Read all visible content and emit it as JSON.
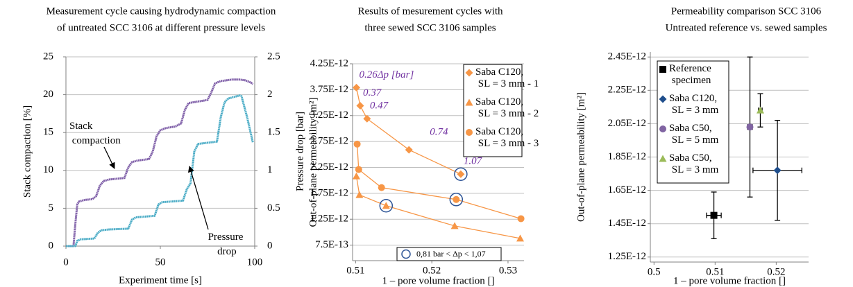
{
  "chart_data": [
    {
      "type": "line",
      "title": [
        "Measurement cycle causing hydrodynamic compaction",
        "of untreated SCC 3106 at different  pressure levels"
      ],
      "xlabel": "Experiment time [s]",
      "ylabel": "Stack compaction [%]",
      "y2label": "Pressure drop [bar]",
      "xlim": [
        0,
        100
      ],
      "xticks": [
        0,
        50,
        100
      ],
      "ylim": [
        0,
        25
      ],
      "yticks": [
        0,
        5,
        10,
        15,
        20,
        25
      ],
      "y2lim": [
        0,
        2.5
      ],
      "y2ticks": [
        0,
        0.5,
        1,
        1.5,
        2,
        2.5
      ],
      "grid": true,
      "series": [
        {
          "name": "Stack compaction",
          "color": "#7f5fa8",
          "x": [
            0,
            4,
            5,
            6,
            7,
            10,
            14,
            16,
            18,
            20,
            23,
            27,
            31,
            33,
            35,
            38,
            44,
            46,
            48,
            50,
            53,
            58,
            61,
            63,
            65,
            70,
            75,
            77,
            79,
            82,
            88,
            92,
            95,
            98,
            99
          ],
          "values": [
            0,
            0,
            3,
            5.5,
            5.9,
            6.1,
            6.2,
            6.6,
            8.0,
            8.6,
            8.8,
            8.9,
            9.0,
            10.4,
            11.1,
            11.3,
            11.5,
            12.5,
            14.5,
            15.3,
            15.6,
            15.8,
            16.2,
            18.0,
            18.9,
            19.1,
            19.3,
            20.3,
            21.5,
            21.8,
            22.0,
            22.0,
            21.9,
            21.6,
            21.4
          ]
        },
        {
          "name": "Pressure drop",
          "color": "#4bacc6",
          "axis": "y2",
          "x": [
            0,
            5,
            6,
            8,
            15,
            17,
            19,
            23,
            33,
            35,
            37,
            47,
            49,
            51,
            62,
            64,
            66,
            68,
            70,
            80,
            82,
            84,
            86,
            92,
            93,
            96,
            99
          ],
          "values": [
            0,
            0,
            0.07,
            0.09,
            0.1,
            0.18,
            0.21,
            0.22,
            0.23,
            0.35,
            0.38,
            0.4,
            0.55,
            0.58,
            0.6,
            0.75,
            0.83,
            1.25,
            1.35,
            1.38,
            1.7,
            1.9,
            1.95,
            1.99,
            1.98,
            1.7,
            1.37
          ]
        }
      ]
    },
    {
      "type": "scatter",
      "title": [
        "Results of mesurement cycles with",
        "three sewed SCC 3106 samples"
      ],
      "xlabel": "1 – pore volume fraction []",
      "ylabel": "Out-of-plane permeability [m²]",
      "xlim": [
        0.5096,
        0.5321
      ],
      "xticks": [
        0.51,
        0.52,
        0.53
      ],
      "ylim": [
        4.5e-13,
        4.25e-12
      ],
      "yticks": [
        {
          "value": 7.5e-13,
          "label": "7.5E-13"
        },
        {
          "value": 1.25e-12,
          "label": "1.25E-12"
        },
        {
          "value": 1.75e-12,
          "label": "1.75E-12"
        },
        {
          "value": 2.25e-12,
          "label": "2.25E-12"
        },
        {
          "value": 2.75e-12,
          "label": "2.75E-12"
        },
        {
          "value": 3.25e-12,
          "label": "3.25E-12"
        },
        {
          "value": 3.75e-12,
          "label": "3.75E-12"
        },
        {
          "value": 4.25e-12,
          "label": "4.25E-12"
        }
      ],
      "grid": true,
      "lines": true,
      "legend": "upper right",
      "series": [
        {
          "name": "Saba C120, SL = 3 mm - 1",
          "color": "#f79646",
          "marker": "diamond",
          "x": [
            0.5101,
            0.5106,
            0.5115,
            0.517,
            0.5238
          ],
          "values": [
            3.79e-12,
            3.44e-12,
            3.19e-12,
            2.59e-12,
            2.12e-12
          ]
        },
        {
          "name": "Saba C120, SL = 3 mm - 2",
          "color": "#f79646",
          "marker": "triangle",
          "x": [
            0.5101,
            0.5105,
            0.514,
            0.523,
            0.5316
          ],
          "values": [
            2.08e-12,
            1.72e-12,
            1.51e-12,
            1.12e-12,
            8.8e-13
          ]
        },
        {
          "name": "Saba C120, SL = 3 mm - 3",
          "color": "#f79646",
          "marker": "circle",
          "x": [
            0.5102,
            0.5104,
            0.5134,
            0.5232,
            0.5317
          ],
          "values": [
            2.7e-12,
            2.21e-12,
            1.86e-12,
            1.63e-12,
            1.26e-12
          ]
        }
      ],
      "annotations": [
        "0.26Δp [bar]",
        "0.37",
        "0.47",
        "0.74",
        "1.07"
      ],
      "note": "0,81 bar < Δp < 1,07"
    },
    {
      "type": "errorbar",
      "title": [
        "Permeability comparison SCC 3106",
        "Untreated reference vs. sewed samples"
      ],
      "xlabel": "1 – pore volume fraction []",
      "ylabel": "Out-of-plane permeability [m²]",
      "xlim": [
        0.4994,
        0.5253
      ],
      "xticks": [
        0.5,
        0.51,
        0.52
      ],
      "ylim": [
        1.22e-12,
        2.48e-12
      ],
      "yticks": [
        {
          "value": 1.25e-12,
          "label": "1.25E-12"
        },
        {
          "value": 1.45e-12,
          "label": "1.45E-12"
        },
        {
          "value": 1.65e-12,
          "label": "1.65E-12"
        },
        {
          "value": 1.85e-12,
          "label": "1.85E-12"
        },
        {
          "value": 2.05e-12,
          "label": "2.05E-12"
        },
        {
          "value": 2.25e-12,
          "label": "2.25E-12"
        },
        {
          "value": 2.45e-12,
          "label": "2.45E-12"
        }
      ],
      "grid": true,
      "legend": "upper left",
      "series": [
        {
          "name": "Reference specimen",
          "color": "#000000",
          "marker": "square",
          "x": [
            0.5098
          ],
          "values": [
            1.5e-12
          ],
          "y_err": [
            1.4e-13
          ],
          "x_err": [
            0.0012
          ]
        },
        {
          "name": "Saba C120, SL = 3 mm",
          "color": "#1f4e8c",
          "marker": "diamond",
          "x": [
            0.5202
          ],
          "values": [
            1.77e-12
          ],
          "y_err": [
            3e-13
          ],
          "x_err": [
            0.004
          ]
        },
        {
          "name": "Saba C50, SL = 5 mm",
          "color": "#8064a2",
          "marker": "circle",
          "x": [
            0.5157
          ],
          "values": [
            2.03e-12
          ],
          "y_err": [
            4.2e-13
          ],
          "x_err": [
            0.0004
          ]
        },
        {
          "name": "Saba C50, SL = 3 mm",
          "color": "#9bbb59",
          "marker": "triangle",
          "x": [
            0.5174
          ],
          "values": [
            2.13e-12
          ],
          "y_err": [
            1e-13
          ],
          "x_err": [
            0.0003
          ]
        }
      ]
    }
  ]
}
